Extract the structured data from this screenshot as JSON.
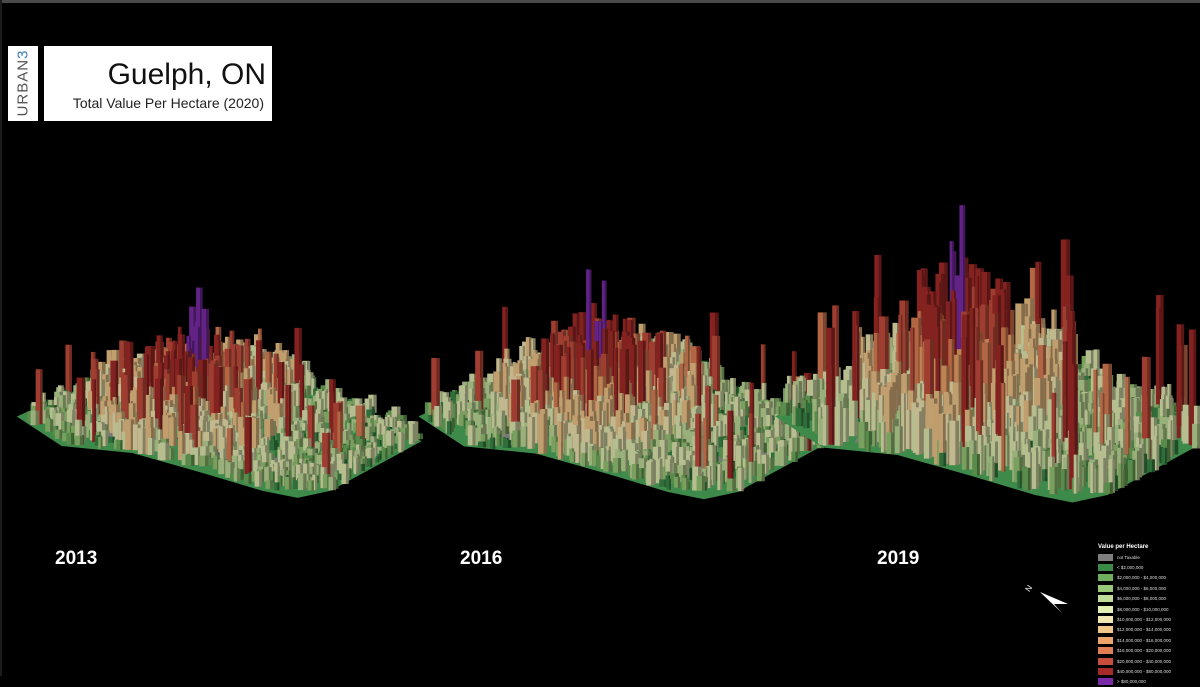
{
  "header": {
    "brand_letters": "URBAN",
    "brand_digit": "3",
    "title": "Guelph, ON",
    "subtitle": "Total Value Per Hectare (2020)"
  },
  "panels": [
    {
      "year": "2013"
    },
    {
      "year": "2016"
    },
    {
      "year": "2019"
    }
  ],
  "legend": {
    "title": "Value per Hectare",
    "items": [
      {
        "label": "not Taxable",
        "color": "#7f7f7f"
      },
      {
        "label": "< $2,000,000",
        "color": "#3b8a48"
      },
      {
        "label": "$2,000,000 - $4,000,000",
        "color": "#6fae5c"
      },
      {
        "label": "$4,000,000 - $6,000,000",
        "color": "#98c878"
      },
      {
        "label": "$6,000,000 - $8,000,000",
        "color": "#c1dc98"
      },
      {
        "label": "$8,000,000 - $10,000,000",
        "color": "#e3edb4"
      },
      {
        "label": "$10,000,000 - $12,000,000",
        "color": "#f1e6b2"
      },
      {
        "label": "$12,000,000 - $14,000,000",
        "color": "#f1c68a"
      },
      {
        "label": "$14,000,000 - $16,000,000",
        "color": "#eda46a"
      },
      {
        "label": "$16,000,000 - $20,000,000",
        "color": "#e07f55"
      },
      {
        "label": "$20,000,000 - $40,000,000",
        "color": "#c74e3c"
      },
      {
        "label": "$40,000,000 - $80,000,000",
        "color": "#a52a28"
      },
      {
        "label": "> $80,000,000",
        "color": "#7a2aa8"
      }
    ]
  },
  "compass": {
    "label": "N"
  }
}
